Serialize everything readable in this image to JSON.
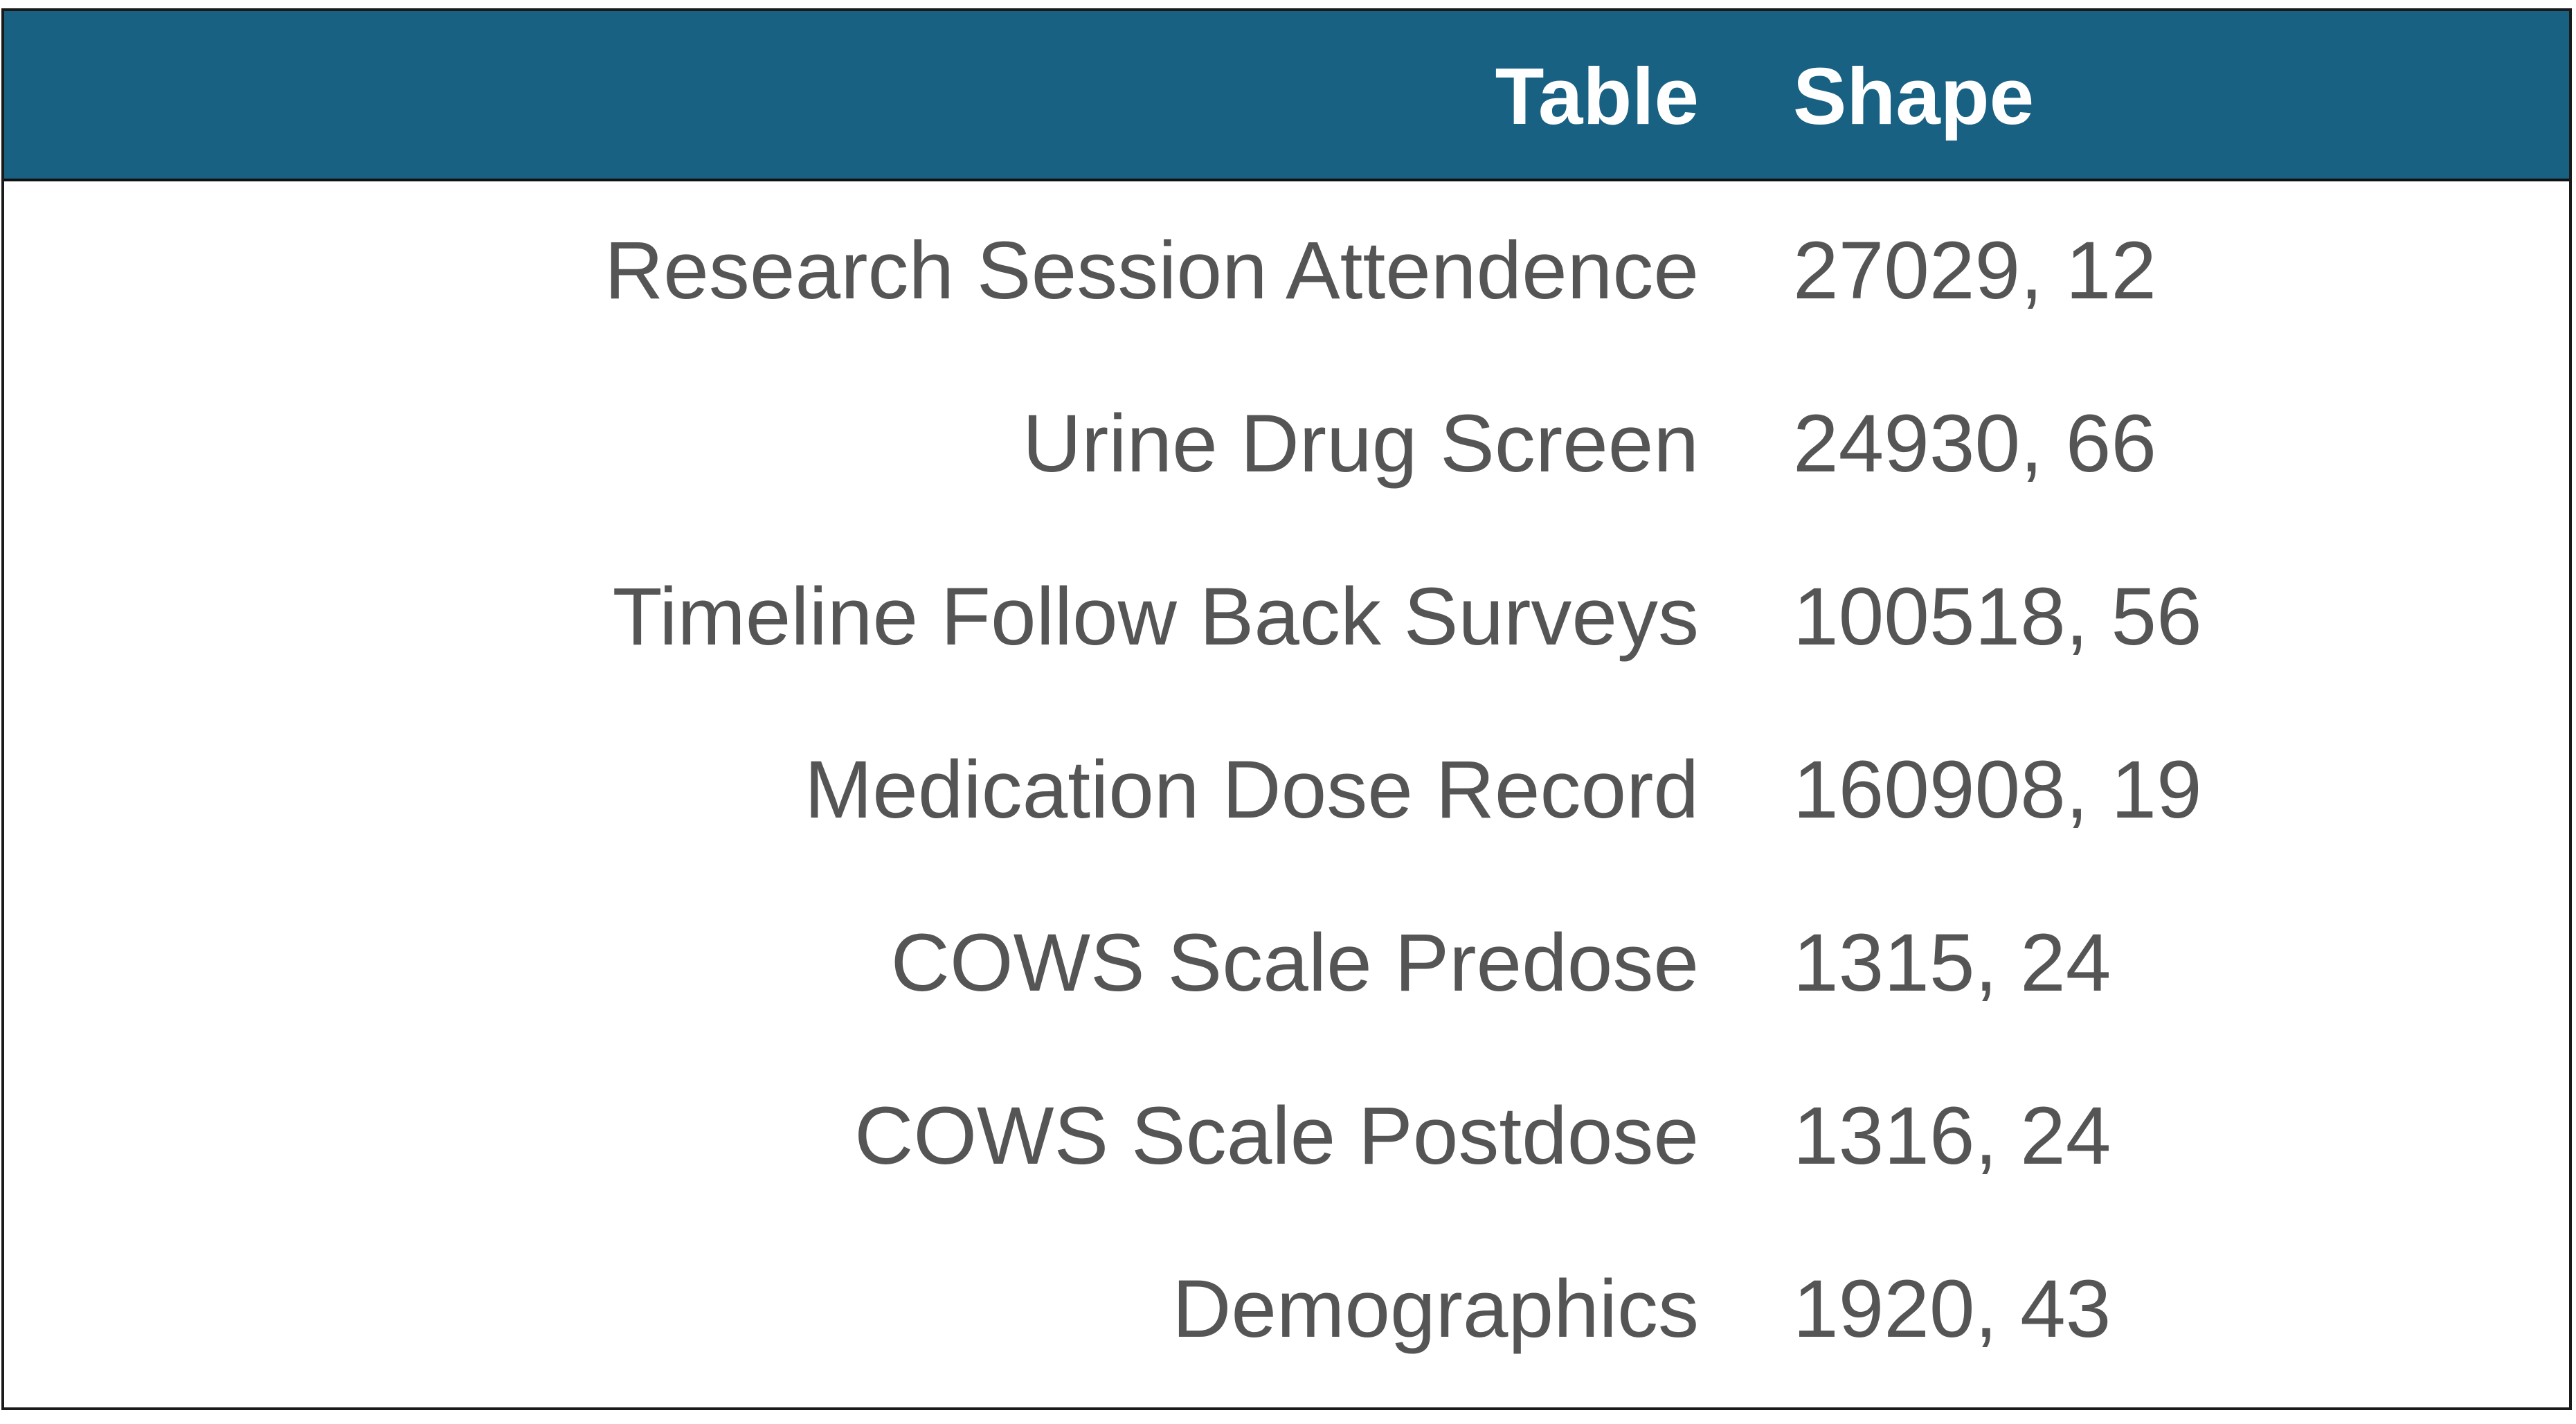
{
  "header": {
    "table_label": "Table",
    "shape_label": "Shape",
    "header_bg_color": "#186183"
  },
  "rows": [
    {
      "name": "Research Session Attendence",
      "shape": "27029, 12"
    },
    {
      "name": "Urine Drug Screen",
      "shape": "24930, 66"
    },
    {
      "name": "Timeline Follow Back Surveys",
      "shape": "100518, 56"
    },
    {
      "name": "Medication Dose Record",
      "shape": "160908, 19"
    },
    {
      "name": "COWS Scale Predose",
      "shape": "1315, 24"
    },
    {
      "name": "COWS Scale Postdose",
      "shape": "1316, 24"
    },
    {
      "name": "Demographics",
      "shape": "1920, 43"
    }
  ]
}
